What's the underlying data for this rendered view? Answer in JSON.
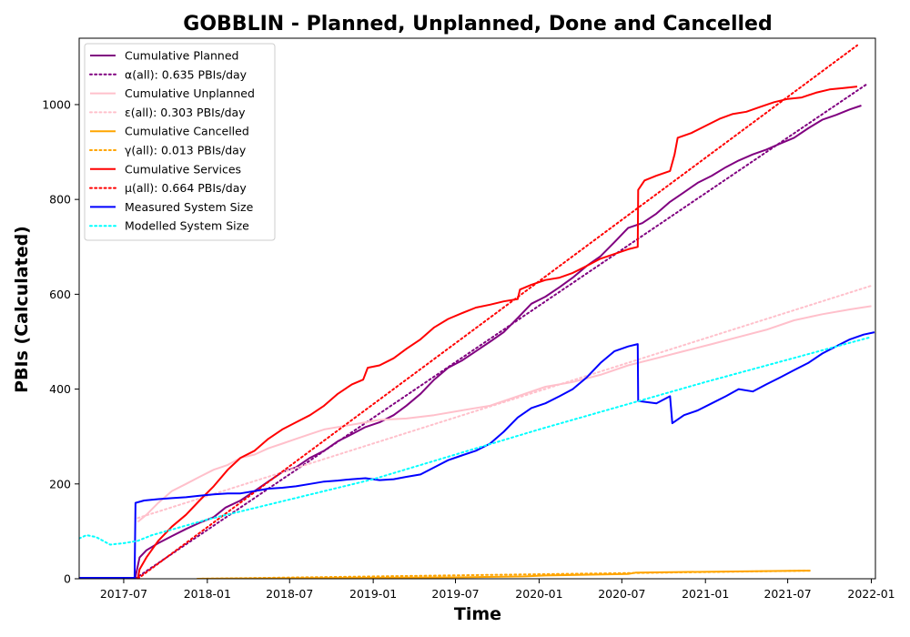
{
  "chart_data": {
    "type": "line",
    "title": "GOBBLIN - Planned, Unplanned, Done  and Cancelled",
    "xlabel": "Time",
    "ylabel": "PBIs (Calculated)",
    "x_type": "date",
    "xlim": [
      "2017-03-25",
      "2022-01-10"
    ],
    "ylim": [
      0,
      1140
    ],
    "x_ticks": [
      "2017-07",
      "2018-01",
      "2018-07",
      "2019-01",
      "2019-07",
      "2020-01",
      "2020-07",
      "2021-01",
      "2021-07",
      "2022-01"
    ],
    "x_tick_dates": [
      "2017-07-01",
      "2018-01-01",
      "2018-07-01",
      "2019-01-01",
      "2019-07-01",
      "2020-01-01",
      "2020-07-01",
      "2021-01-01",
      "2021-07-01",
      "2022-01-01"
    ],
    "y_ticks": [
      0,
      200,
      400,
      600,
      800,
      1000
    ],
    "grid": false,
    "legend_position": "upper-left",
    "series": [
      {
        "name": "Cumulative Planned",
        "color": "#800080",
        "style": "solid",
        "points": [
          [
            "2017-03-25",
            0
          ],
          [
            "2017-07-26",
            0
          ],
          [
            "2017-08-05",
            45
          ],
          [
            "2017-08-20",
            60
          ],
          [
            "2017-09-15",
            75
          ],
          [
            "2017-10-15",
            90
          ],
          [
            "2017-11-15",
            105
          ],
          [
            "2017-12-15",
            118
          ],
          [
            "2018-01-15",
            130
          ],
          [
            "2018-02-10",
            150
          ],
          [
            "2018-03-15",
            165
          ],
          [
            "2018-04-15",
            185
          ],
          [
            "2018-05-15",
            205
          ],
          [
            "2018-06-15",
            225
          ],
          [
            "2018-07-15",
            235
          ],
          [
            "2018-08-15",
            255
          ],
          [
            "2018-09-15",
            270
          ],
          [
            "2018-10-15",
            290
          ],
          [
            "2018-11-15",
            305
          ],
          [
            "2018-12-15",
            320
          ],
          [
            "2019-01-15",
            330
          ],
          [
            "2019-02-15",
            345
          ],
          [
            "2019-03-15",
            365
          ],
          [
            "2019-04-15",
            390
          ],
          [
            "2019-05-15",
            420
          ],
          [
            "2019-06-15",
            445
          ],
          [
            "2019-07-15",
            460
          ],
          [
            "2019-08-15",
            480
          ],
          [
            "2019-09-15",
            500
          ],
          [
            "2019-10-15",
            520
          ],
          [
            "2019-11-15",
            550
          ],
          [
            "2019-12-15",
            580
          ],
          [
            "2020-01-15",
            595
          ],
          [
            "2020-02-15",
            615
          ],
          [
            "2020-03-15",
            635
          ],
          [
            "2020-04-15",
            660
          ],
          [
            "2020-05-15",
            680
          ],
          [
            "2020-06-15",
            710
          ],
          [
            "2020-07-15",
            740
          ],
          [
            "2020-08-15",
            750
          ],
          [
            "2020-09-15",
            770
          ],
          [
            "2020-10-15",
            795
          ],
          [
            "2020-11-15",
            815
          ],
          [
            "2020-12-15",
            835
          ],
          [
            "2021-01-15",
            850
          ],
          [
            "2021-02-15",
            868
          ],
          [
            "2021-03-15",
            882
          ],
          [
            "2021-04-15",
            895
          ],
          [
            "2021-05-15",
            905
          ],
          [
            "2021-06-15",
            918
          ],
          [
            "2021-07-15",
            930
          ],
          [
            "2021-08-15",
            950
          ],
          [
            "2021-09-15",
            968
          ],
          [
            "2021-10-15",
            978
          ],
          [
            "2021-11-15",
            990
          ],
          [
            "2021-12-10",
            998
          ]
        ]
      },
      {
        "name": "α(all): 0.635 PBIs/day",
        "color": "#800080",
        "style": "dotted",
        "points": [
          [
            "2017-07-26",
            0
          ],
          [
            "2021-12-25",
            1045
          ]
        ]
      },
      {
        "name": "Cumulative Unplanned",
        "color": "#ffc0cb",
        "style": "solid",
        "points": [
          [
            "2017-08-01",
            120
          ],
          [
            "2017-08-20",
            135
          ],
          [
            "2017-09-15",
            160
          ],
          [
            "2017-10-15",
            185
          ],
          [
            "2017-11-15",
            200
          ],
          [
            "2017-12-15",
            215
          ],
          [
            "2018-01-15",
            230
          ],
          [
            "2018-02-15",
            240
          ],
          [
            "2018-03-15",
            255
          ],
          [
            "2018-04-15",
            262
          ],
          [
            "2018-05-15",
            275
          ],
          [
            "2018-06-15",
            285
          ],
          [
            "2018-07-15",
            295
          ],
          [
            "2018-08-15",
            305
          ],
          [
            "2018-09-15",
            315
          ],
          [
            "2018-10-15",
            320
          ],
          [
            "2018-11-15",
            325
          ],
          [
            "2018-12-15",
            330
          ],
          [
            "2019-01-15",
            335
          ],
          [
            "2019-03-15",
            338
          ],
          [
            "2019-05-15",
            345
          ],
          [
            "2019-07-15",
            355
          ],
          [
            "2019-09-15",
            365
          ],
          [
            "2019-11-15",
            385
          ],
          [
            "2020-01-15",
            405
          ],
          [
            "2020-03-15",
            415
          ],
          [
            "2020-05-15",
            430
          ],
          [
            "2020-07-15",
            450
          ],
          [
            "2020-09-15",
            465
          ],
          [
            "2020-11-15",
            480
          ],
          [
            "2021-01-15",
            495
          ],
          [
            "2021-03-15",
            510
          ],
          [
            "2021-05-15",
            525
          ],
          [
            "2021-07-15",
            545
          ],
          [
            "2021-09-15",
            558
          ],
          [
            "2021-11-15",
            568
          ],
          [
            "2022-01-01",
            575
          ]
        ]
      },
      {
        "name": "ε(all): 0.303 PBIs/day",
        "color": "#ffc0cb",
        "style": "dotted",
        "points": [
          [
            "2017-08-01",
            128
          ],
          [
            "2022-01-01",
            618
          ]
        ]
      },
      {
        "name": "Cumulative Cancelled",
        "color": "#ffa500",
        "style": "solid",
        "points": [
          [
            "2017-12-10",
            0
          ],
          [
            "2018-06-15",
            1
          ],
          [
            "2019-01-15",
            2
          ],
          [
            "2019-07-15",
            3
          ],
          [
            "2019-12-01",
            5
          ],
          [
            "2020-01-15",
            7
          ],
          [
            "2020-07-15",
            10
          ],
          [
            "2020-08-01",
            13
          ],
          [
            "2021-01-15",
            15
          ],
          [
            "2021-08-01",
            17
          ],
          [
            "2021-08-20",
            17
          ]
        ]
      },
      {
        "name": "γ(all): 0.013 PBIs/day",
        "color": "#ffa500",
        "style": "dotted",
        "points": [
          [
            "2017-12-10",
            0
          ],
          [
            "2021-08-20",
            17
          ]
        ]
      },
      {
        "name": "Cumulative Services",
        "color": "#ff0000",
        "style": "solid",
        "points": [
          [
            "2017-08-01",
            0
          ],
          [
            "2017-08-05",
            20
          ],
          [
            "2017-08-20",
            45
          ],
          [
            "2017-09-15",
            80
          ],
          [
            "2017-10-15",
            110
          ],
          [
            "2017-11-15",
            135
          ],
          [
            "2017-12-15",
            165
          ],
          [
            "2018-01-15",
            195
          ],
          [
            "2018-02-15",
            230
          ],
          [
            "2018-03-15",
            255
          ],
          [
            "2018-04-15",
            270
          ],
          [
            "2018-05-15",
            295
          ],
          [
            "2018-06-15",
            315
          ],
          [
            "2018-07-15",
            330
          ],
          [
            "2018-08-15",
            345
          ],
          [
            "2018-09-15",
            365
          ],
          [
            "2018-10-15",
            390
          ],
          [
            "2018-11-15",
            410
          ],
          [
            "2018-12-10",
            420
          ],
          [
            "2018-12-20",
            445
          ],
          [
            "2019-01-15",
            450
          ],
          [
            "2019-02-15",
            465
          ],
          [
            "2019-03-15",
            485
          ],
          [
            "2019-04-15",
            505
          ],
          [
            "2019-05-15",
            530
          ],
          [
            "2019-06-15",
            548
          ],
          [
            "2019-07-15",
            560
          ],
          [
            "2019-08-15",
            572
          ],
          [
            "2019-09-15",
            578
          ],
          [
            "2019-10-15",
            585
          ],
          [
            "2019-11-15",
            590
          ],
          [
            "2019-11-20",
            610
          ],
          [
            "2019-12-15",
            620
          ],
          [
            "2020-01-15",
            630
          ],
          [
            "2020-02-15",
            635
          ],
          [
            "2020-03-15",
            645
          ],
          [
            "2020-04-15",
            660
          ],
          [
            "2020-05-15",
            675
          ],
          [
            "2020-06-15",
            685
          ],
          [
            "2020-07-15",
            695
          ],
          [
            "2020-08-05",
            700
          ],
          [
            "2020-08-06",
            820
          ],
          [
            "2020-08-20",
            840
          ],
          [
            "2020-09-15",
            850
          ],
          [
            "2020-10-15",
            860
          ],
          [
            "2020-10-25",
            895
          ],
          [
            "2020-11-01",
            930
          ],
          [
            "2020-12-01",
            940
          ],
          [
            "2021-01-01",
            955
          ],
          [
            "2021-02-01",
            970
          ],
          [
            "2021-03-01",
            980
          ],
          [
            "2021-04-01",
            985
          ],
          [
            "2021-05-01",
            995
          ],
          [
            "2021-06-01",
            1005
          ],
          [
            "2021-07-01",
            1012
          ],
          [
            "2021-08-01",
            1015
          ],
          [
            "2021-09-01",
            1025
          ],
          [
            "2021-10-01",
            1032
          ],
          [
            "2021-11-01",
            1035
          ],
          [
            "2021-12-01",
            1038
          ]
        ]
      },
      {
        "name": "μ(all): 0.664 PBIs/day",
        "color": "#ff0000",
        "style": "dotted",
        "points": [
          [
            "2017-08-01",
            0
          ],
          [
            "2021-12-01",
            1125
          ]
        ]
      },
      {
        "name": "Measured System Size",
        "color": "#0000ff",
        "style": "solid",
        "points": [
          [
            "2017-03-25",
            2
          ],
          [
            "2017-07-25",
            2
          ],
          [
            "2017-07-27",
            160
          ],
          [
            "2017-08-15",
            165
          ],
          [
            "2017-09-15",
            168
          ],
          [
            "2017-10-15",
            170
          ],
          [
            "2017-11-15",
            172
          ],
          [
            "2017-12-15",
            175
          ],
          [
            "2018-01-15",
            178
          ],
          [
            "2018-02-15",
            180
          ],
          [
            "2018-03-15",
            180
          ],
          [
            "2018-04-15",
            185
          ],
          [
            "2018-05-15",
            190
          ],
          [
            "2018-06-15",
            192
          ],
          [
            "2018-07-15",
            195
          ],
          [
            "2018-08-15",
            200
          ],
          [
            "2018-09-15",
            205
          ],
          [
            "2018-10-15",
            207
          ],
          [
            "2018-11-15",
            210
          ],
          [
            "2018-12-15",
            212
          ],
          [
            "2019-01-15",
            208
          ],
          [
            "2019-02-15",
            210
          ],
          [
            "2019-03-15",
            215
          ],
          [
            "2019-04-15",
            220
          ],
          [
            "2019-05-15",
            235
          ],
          [
            "2019-06-15",
            250
          ],
          [
            "2019-07-15",
            260
          ],
          [
            "2019-08-15",
            270
          ],
          [
            "2019-09-15",
            285
          ],
          [
            "2019-10-15",
            310
          ],
          [
            "2019-11-15",
            340
          ],
          [
            "2019-12-15",
            360
          ],
          [
            "2020-01-15",
            370
          ],
          [
            "2020-02-15",
            385
          ],
          [
            "2020-03-15",
            400
          ],
          [
            "2020-04-15",
            425
          ],
          [
            "2020-05-15",
            455
          ],
          [
            "2020-06-15",
            480
          ],
          [
            "2020-07-15",
            490
          ],
          [
            "2020-08-05",
            495
          ],
          [
            "2020-08-06",
            375
          ],
          [
            "2020-09-15",
            370
          ],
          [
            "2020-10-15",
            385
          ],
          [
            "2020-10-20",
            328
          ],
          [
            "2020-11-15",
            345
          ],
          [
            "2020-12-15",
            355
          ],
          [
            "2021-01-15",
            370
          ],
          [
            "2021-02-15",
            385
          ],
          [
            "2021-03-15",
            400
          ],
          [
            "2021-04-15",
            395
          ],
          [
            "2021-05-15",
            410
          ],
          [
            "2021-06-15",
            425
          ],
          [
            "2021-07-15",
            440
          ],
          [
            "2021-08-15",
            455
          ],
          [
            "2021-09-15",
            475
          ],
          [
            "2021-10-15",
            490
          ],
          [
            "2021-11-15",
            505
          ],
          [
            "2021-12-15",
            515
          ],
          [
            "2022-01-08",
            520
          ]
        ]
      },
      {
        "name": "Modelled System Size",
        "color": "#00ffff",
        "style": "dotted",
        "points": [
          [
            "2017-03-25",
            85
          ],
          [
            "2017-04-10",
            92
          ],
          [
            "2017-05-01",
            88
          ],
          [
            "2017-06-01",
            72
          ],
          [
            "2017-07-01",
            75
          ],
          [
            "2017-08-01",
            80
          ],
          [
            "2017-09-01",
            92
          ],
          [
            "2017-10-01",
            100
          ],
          [
            "2018-01-01",
            125
          ],
          [
            "2019-01-01",
            210
          ],
          [
            "2020-01-01",
            315
          ],
          [
            "2021-01-01",
            415
          ],
          [
            "2022-01-01",
            510
          ]
        ]
      }
    ]
  }
}
